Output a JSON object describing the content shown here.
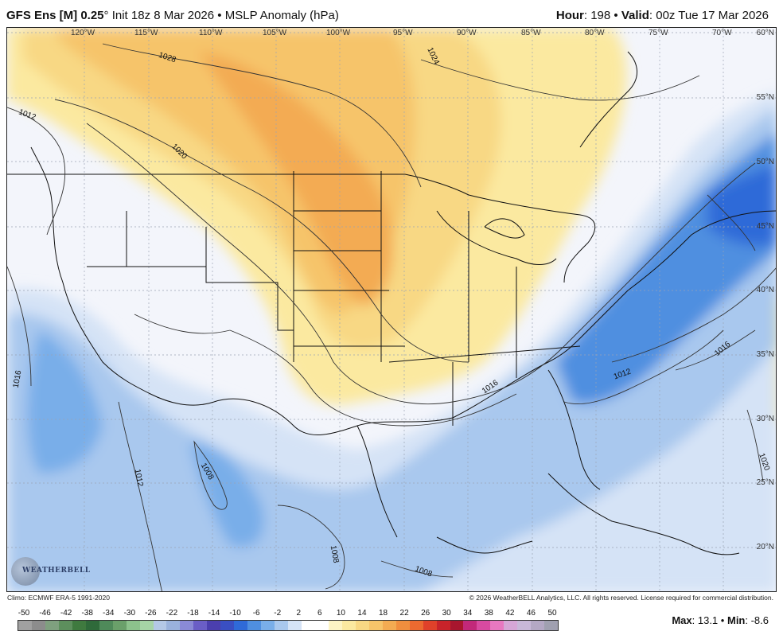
{
  "header": {
    "model": "GFS Ens [M] 0.25",
    "degree_symbol": "°",
    "init": "Init 18z 8 Mar 2026",
    "bullet": "•",
    "field": "MSLP Anomaly (hPa)",
    "hour_label": "Hour",
    "hour_value": ": 198",
    "valid_label": "Valid",
    "valid_value": ": 00z Tue 17 Mar 2026"
  },
  "map": {
    "longitude_labels": [
      "120°W",
      "115°W",
      "110°W",
      "105°W",
      "100°W",
      "95°W",
      "90°W",
      "85°W",
      "80°W",
      "75°W",
      "70°W"
    ],
    "latitude_labels": [
      "60°N",
      "55°N",
      "50°N",
      "45°N",
      "40°N",
      "35°N",
      "30°N",
      "25°N",
      "20°N"
    ],
    "isobar_labels": [
      "1028",
      "1024",
      "1020",
      "1016",
      "1012",
      "1008"
    ],
    "isobar_label_instances": [
      "1028",
      "1024",
      "1020",
      "1012",
      "1016",
      "1016",
      "1012",
      "1016",
      "1012",
      "1008",
      "1008",
      "1008",
      "1020"
    ],
    "colors": {
      "positive_anomaly": "#f6c46a",
      "strong_positive": "#f3ab52",
      "weak_positive": "#fbe9a0",
      "negative_anomaly": "#a9c8ee",
      "strong_negative": "#4f8fe0",
      "weak_negative": "#d5e3f6",
      "land_outline": "#111111",
      "background": "#f3f5fb"
    }
  },
  "footer": {
    "climo": "Climo: ECMWF ERA-5 1991-2020",
    "copyright": "© 2026 WeatherBELL Analytics, LLC. All rights reserved. License required for commercial distribution.",
    "logo_text": "WEATHERBELL"
  },
  "colorbar": {
    "ticks": [
      "-50",
      "-46",
      "-42",
      "-38",
      "-34",
      "-30",
      "-26",
      "-22",
      "-18",
      "-14",
      "-10",
      "-6",
      "-2",
      "2",
      "6",
      "10",
      "14",
      "18",
      "22",
      "26",
      "30",
      "34",
      "38",
      "42",
      "46",
      "50"
    ],
    "colors": [
      "#a0a0a0",
      "#8c8c8c",
      "#7fa07f",
      "#5d8f5d",
      "#3f7a3f",
      "#2f6a3a",
      "#4f8a5a",
      "#6aa06a",
      "#8cc28c",
      "#a6d4a6",
      "#b4c8e6",
      "#9ab2dc",
      "#8a8ad6",
      "#6a5ec6",
      "#4b3fae",
      "#3a4fc2",
      "#2f6ad8",
      "#4f8fe0",
      "#79aee9",
      "#a9c8ee",
      "#d5e3f6",
      "#ffffff",
      "#ffffff",
      "#fdf4c4",
      "#fbe9a0",
      "#f8d884",
      "#f6c46a",
      "#f3ab52",
      "#f08e3e",
      "#ec6a30",
      "#e0412a",
      "#c8232a",
      "#a8162e",
      "#c2287a",
      "#d84aa0",
      "#e878c0",
      "#d6a6d6",
      "#c8b8d8",
      "#b4a8c4",
      "#a0a0b0"
    ],
    "max_label": "Max",
    "max_value": ": 13.1",
    "min_label": "Min",
    "min_value": ": -8.6"
  }
}
